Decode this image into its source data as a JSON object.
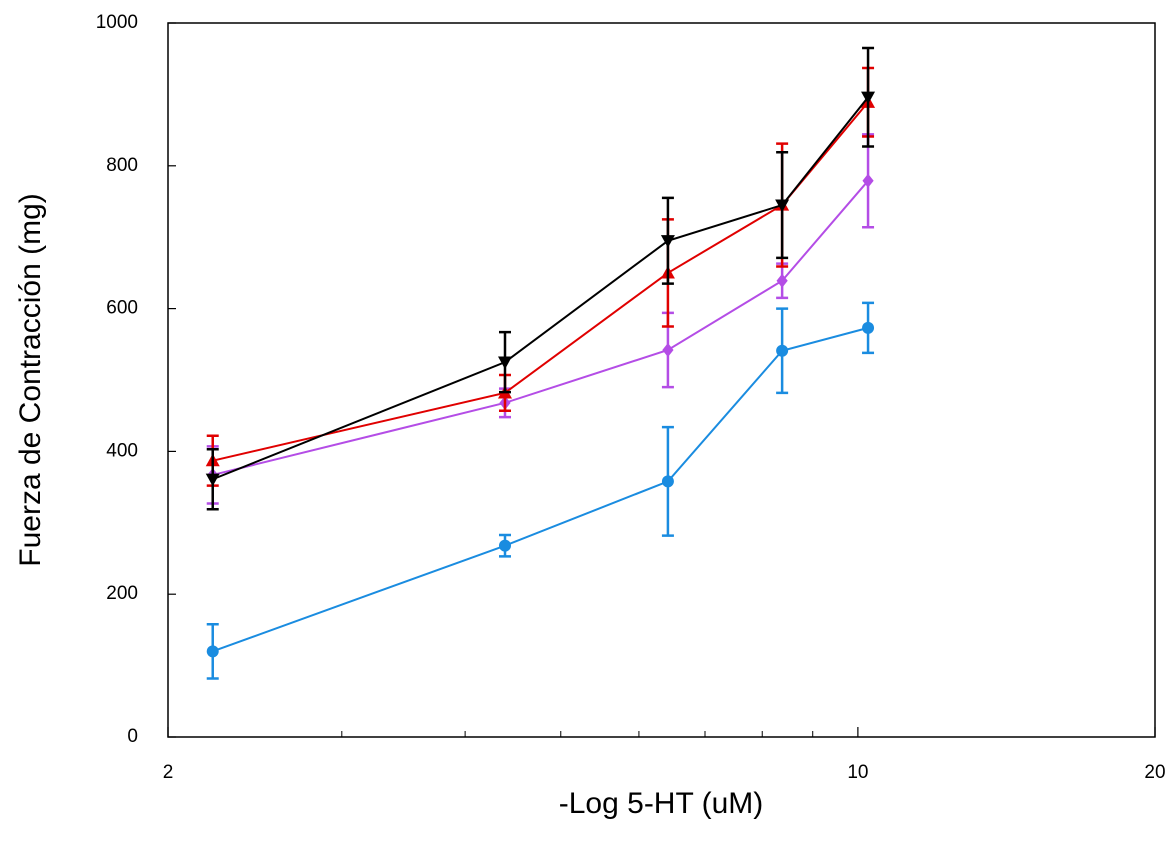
{
  "chart_data": {
    "type": "line",
    "x_label": "-Log 5-HT (uM)",
    "y_label": "Fuerza de Contracción (mg)",
    "x": [
      2.22,
      4.39,
      6.42,
      8.38,
      10.24
    ],
    "xscale": "log",
    "xlim": [
      2,
      20
    ],
    "xticks": [
      2,
      10,
      20
    ],
    "xminorticks": [
      3,
      4,
      5,
      6,
      7,
      8,
      9
    ],
    "ylim": [
      0,
      1000
    ],
    "yticks": [
      0,
      200,
      400,
      600,
      800,
      1000
    ],
    "series": [
      {
        "color": "#1a8ce0",
        "marker": "circle",
        "values": [
          120,
          268,
          358,
          541,
          573
        ],
        "errors": [
          38,
          15,
          76,
          59,
          35
        ]
      },
      {
        "color": "#b44de6",
        "marker": "diamond",
        "values": [
          367,
          468,
          542,
          639,
          779
        ],
        "errors": [
          40,
          20,
          52,
          24,
          65
        ]
      },
      {
        "color": "#e00000",
        "marker": "triangle-up",
        "values": [
          387,
          482,
          650,
          745,
          889
        ],
        "errors": [
          35,
          25,
          75,
          86,
          48
        ]
      },
      {
        "color": "#000000",
        "marker": "triangle-down",
        "values": [
          361,
          525,
          695,
          745,
          896
        ],
        "errors": [
          42,
          42,
          60,
          74,
          69
        ]
      }
    ]
  }
}
